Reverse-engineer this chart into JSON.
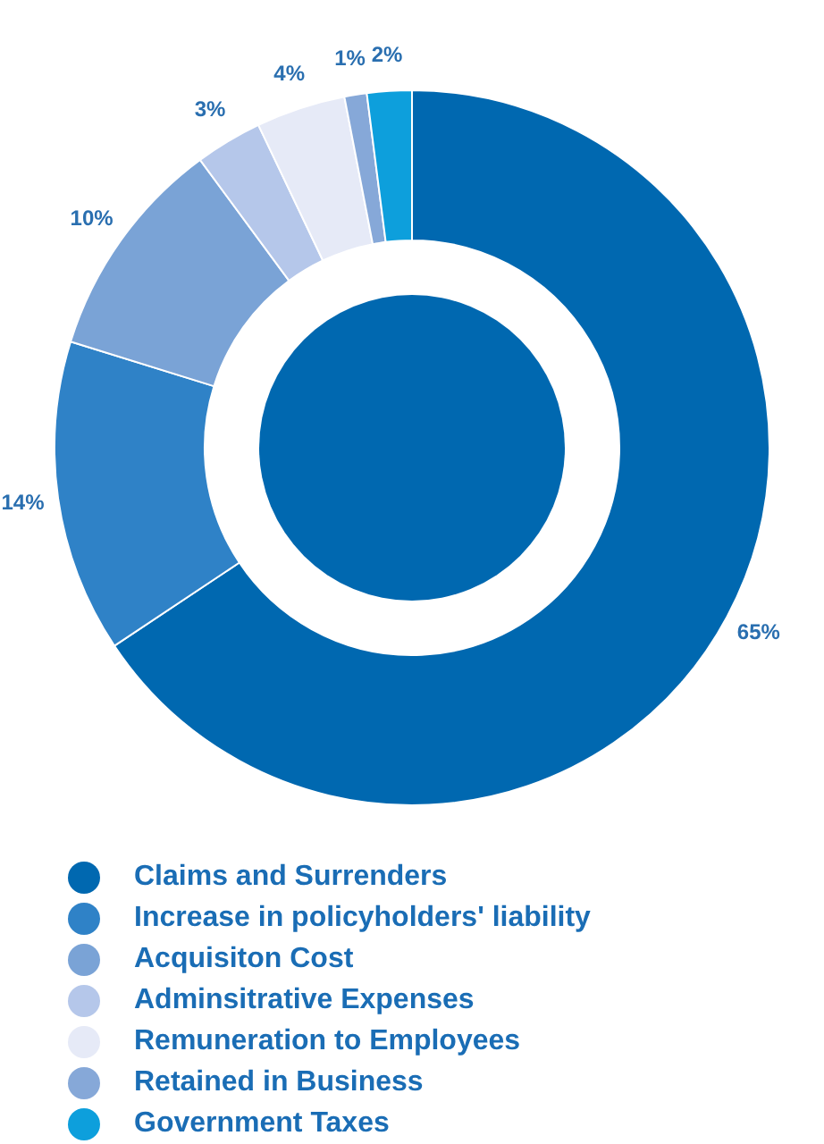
{
  "chart_data": {
    "type": "donut",
    "categories": [
      "Claims and Surrenders",
      "Increase in policyholders' liability",
      "Acquisiton Cost",
      "Adminsitrative Expenses",
      "Remuneration to Employees",
      "Retained in Business",
      "Government Taxes"
    ],
    "values": [
      65,
      14,
      10,
      3,
      4,
      1,
      2
    ],
    "colors": [
      "#0068b0",
      "#2f82c7",
      "#7aa3d6",
      "#b5c7ea",
      "#e6eaf7",
      "#86a8d8",
      "#0d9fdc"
    ],
    "value_labels": [
      "65%",
      "14%",
      "10%",
      "3%",
      "4%",
      "1%",
      "2%"
    ],
    "legend": "bottom"
  }
}
